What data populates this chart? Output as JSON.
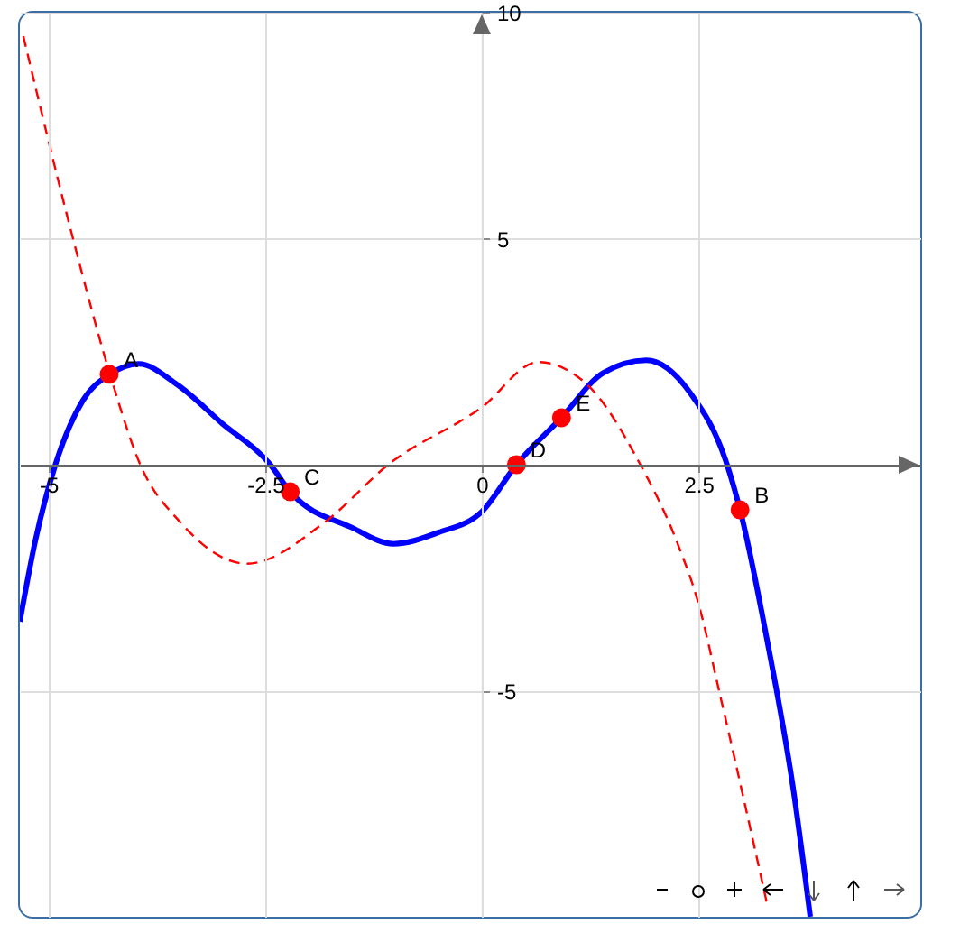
{
  "chart_data": {
    "type": "line",
    "xlim": [
      -5.33,
      5.06
    ],
    "ylim": [
      -10,
      10
    ],
    "xticks": [
      -5,
      -2.5,
      0,
      2.5
    ],
    "yticks": [
      -5,
      5,
      10
    ],
    "grid": true,
    "series": [
      {
        "color": "#0000ff",
        "line_style": "solid",
        "marker": "none",
        "x": [
          -5.33,
          -5.15,
          -4.92,
          -4.6,
          -4.29,
          -3.96,
          -3.5,
          -3.0,
          -2.44,
          -2.21,
          -1.5,
          -1.02,
          -0.5,
          0,
          0.4,
          0.92,
          1.4,
          1.9,
          2.4,
          2.83,
          2.98,
          3.29,
          3.6,
          3.79
        ],
        "values": [
          -3.47,
          -1.67,
          0,
          1.43,
          2.0,
          2.23,
          1.75,
          0.92,
          0,
          -0.6,
          -1.39,
          -1.75,
          -1.5,
          -1.04,
          0,
          1.04,
          2.03,
          2.31,
          1.6,
          0,
          -1.0,
          -3.86,
          -7.25,
          -10
        ]
      },
      {
        "color": "#ff0000",
        "line_style": "dashed",
        "marker": "none",
        "x": [
          -5.29,
          -4.73,
          -4.29,
          -3.94,
          -3.48,
          -2.71,
          -1.81,
          -1.08,
          0,
          0.65,
          1.2,
          1.83,
          2.25,
          2.5,
          2.75,
          3.29
        ],
        "values": [
          9.48,
          5.1,
          2.0,
          0,
          -1.27,
          -2.19,
          -1.27,
          0,
          1.27,
          2.27,
          1.8,
          0,
          -1.7,
          -3.07,
          -5.1,
          -9.7
        ]
      },
      {
        "type": "scatter",
        "color": "#ff0000",
        "marker": "circle",
        "x": [
          -4.3,
          2.98,
          -2.21,
          0.4,
          0.92
        ],
        "values": [
          2.0,
          -1.0,
          -0.6,
          0,
          1.04
        ]
      }
    ],
    "annotations": [
      {
        "text": "A",
        "x": -4.3,
        "y": 2.0
      },
      {
        "text": "B",
        "x": 2.98,
        "y": -1.0
      },
      {
        "text": "C",
        "x": -2.21,
        "y": -0.6
      },
      {
        "text": "D",
        "x": 0.4,
        "y": 0
      },
      {
        "text": "E",
        "x": 0.92,
        "y": 1.04
      }
    ]
  }
}
